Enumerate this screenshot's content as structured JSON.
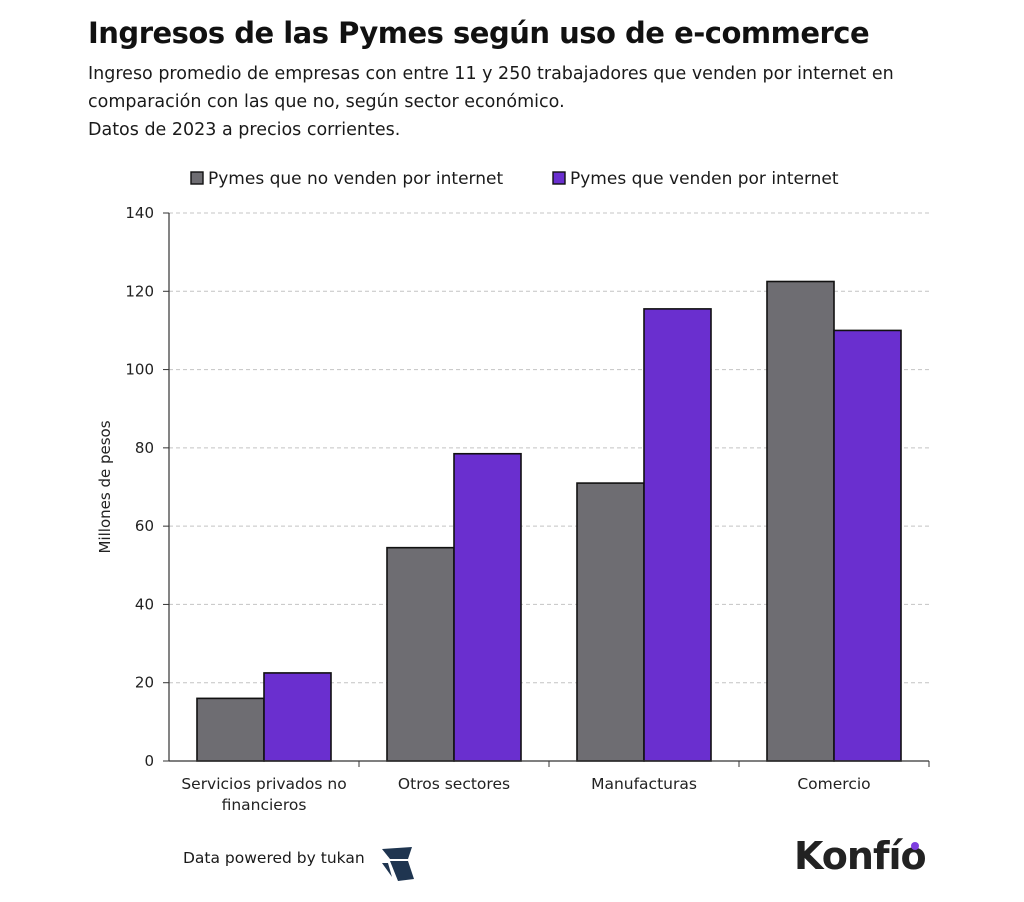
{
  "title": "Ingresos de las Pymes según uso de e-commerce",
  "subtitle_lines": [
    "Ingreso promedio de empresas con entre 11 y 250 trabajadores que venden por internet en",
    "comparación con las que no, según sector económico.",
    "Datos de 2023 a precios corrientes."
  ],
  "chart_data": {
    "type": "bar",
    "categories": [
      [
        "Servicios privados no",
        "financieros"
      ],
      [
        "Otros sectores"
      ],
      [
        "Manufacturas"
      ],
      [
        "Comercio"
      ]
    ],
    "series": [
      {
        "name": "Pymes que no venden por internet",
        "color": "#6e6d72",
        "values": [
          16,
          54.5,
          71,
          122.5
        ]
      },
      {
        "name": "Pymes que venden por internet",
        "color": "#6a2fcf",
        "values": [
          22.5,
          78.5,
          115.5,
          110
        ]
      }
    ],
    "xlabel": "",
    "ylabel": "Millones de pesos",
    "ylim": [
      0,
      140
    ],
    "yticks": [
      0,
      20,
      40,
      60,
      80,
      100,
      120,
      140
    ],
    "grid": true,
    "legend_position": "top"
  },
  "footer": {
    "credit": "Data powered by tukan",
    "brand": "Konfío",
    "brand_accent": "#7e3fe0"
  }
}
